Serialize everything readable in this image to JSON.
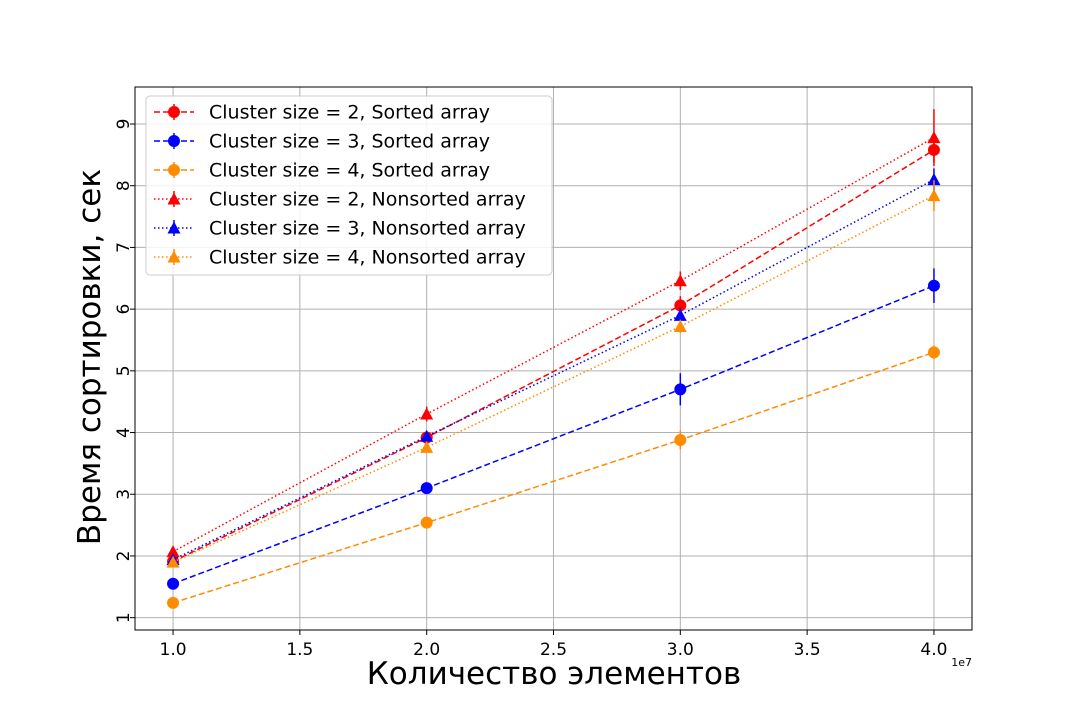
{
  "chart_data": {
    "type": "line",
    "title": "",
    "xlabel": "Количество элементов",
    "ylabel": "Время сортировки, сек",
    "x_offset_label": "1e7",
    "x": [
      1.0,
      2.0,
      3.0,
      4.0
    ],
    "xlim": [
      0.85,
      4.15
    ],
    "ylim": [
      0.8,
      9.6
    ],
    "x_ticks": [
      1.0,
      1.5,
      2.0,
      2.5,
      3.0,
      3.5,
      4.0
    ],
    "x_tick_labels": [
      "1.0",
      "1.5",
      "2.0",
      "2.5",
      "3.0",
      "3.5",
      "4.0"
    ],
    "y_ticks": [
      1,
      2,
      3,
      4,
      5,
      6,
      7,
      8,
      9
    ],
    "y_tick_labels": [
      "1",
      "2",
      "3",
      "4",
      "5",
      "6",
      "7",
      "8",
      "9"
    ],
    "grid": true,
    "legend_position": "top-left",
    "series": [
      {
        "name": "Cluster size = 2, Sorted array",
        "color": "#ff0000",
        "linestyle": "dashed",
        "marker": "circle",
        "values": [
          1.91,
          3.92,
          6.06,
          8.58
        ],
        "errors": [
          0.05,
          0.05,
          0.15,
          0.2
        ]
      },
      {
        "name": "Cluster size = 3, Sorted array",
        "color": "#0000ff",
        "linestyle": "dashed",
        "marker": "circle",
        "values": [
          1.55,
          3.1,
          4.7,
          6.38
        ],
        "errors": [
          0.06,
          0.05,
          0.26,
          0.28
        ]
      },
      {
        "name": "Cluster size = 4, Sorted array",
        "color": "#ff8c00",
        "linestyle": "dashed",
        "marker": "circle",
        "values": [
          1.24,
          2.54,
          3.88,
          5.3
        ],
        "errors": [
          0.04,
          0.05,
          0.15,
          0.11
        ]
      },
      {
        "name": "Cluster size = 2, Nonsorted array",
        "color": "#ff0000",
        "linestyle": "dotted",
        "marker": "triangle",
        "values": [
          2.07,
          4.3,
          6.46,
          8.78
        ],
        "errors": [
          0.05,
          0.12,
          0.15,
          0.46
        ]
      },
      {
        "name": "Cluster size = 3, Nonsorted array",
        "color": "#0000ff",
        "linestyle": "dotted",
        "marker": "triangle",
        "values": [
          1.94,
          3.94,
          5.9,
          8.1
        ],
        "errors": [
          0.05,
          0.05,
          0.12,
          0.18
        ]
      },
      {
        "name": "Cluster size = 4, Nonsorted array",
        "color": "#ff8c00",
        "linestyle": "dotted",
        "marker": "triangle",
        "values": [
          1.9,
          3.76,
          5.72,
          7.84
        ],
        "errors": [
          0.06,
          0.09,
          0.11,
          0.25
        ]
      }
    ]
  }
}
